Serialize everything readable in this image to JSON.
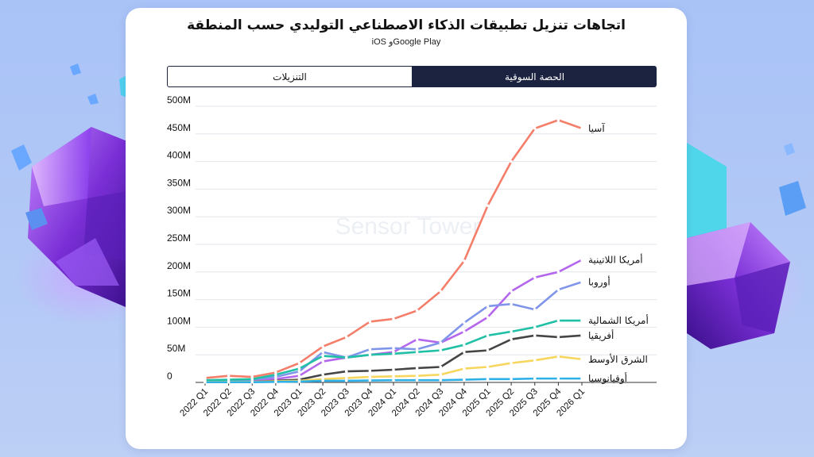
{
  "title": "اتجاهات تنزيل تطبيقات الذكاء الاصطناعي التوليدي حسب المنطقة",
  "subtitle": "iOS وGoogle Play",
  "tabs": {
    "left_label": "التنزيلات",
    "right_label": "الحصة السوقية"
  },
  "watermark": "Sensor Tower",
  "colors": {
    "tab_dark": "#1c2340",
    "background": "#b3c9f6"
  },
  "chart_data": {
    "type": "line",
    "xlabel": "",
    "ylabel": "",
    "ylim": [
      0,
      500000000
    ],
    "y_ticks": [
      "0",
      "50M",
      "100M",
      "150M",
      "200M",
      "250M",
      "300M",
      "350M",
      "400M",
      "450M",
      "500M"
    ],
    "grid": true,
    "legend": "right-end labels",
    "categories": [
      "2022 Q1",
      "2022 Q2",
      "2022 Q3",
      "2022 Q4",
      "2023 Q1",
      "2023 Q2",
      "2023 Q3",
      "2023 Q4",
      "2024 Q1",
      "2024 Q2",
      "2024 Q3",
      "2024 Q4",
      "2025 Q1",
      "2025 Q2",
      "2025 Q3",
      "2025 Q4",
      "2026 Q1"
    ],
    "series": [
      {
        "name": "آسيا",
        "color": "#f47e6a",
        "values": [
          8,
          12,
          10,
          18,
          35,
          65,
          82,
          110,
          115,
          130,
          165,
          220,
          320,
          400,
          460,
          475,
          460
        ]
      },
      {
        "name": "أمريكا اللاتينية",
        "color": "#b467ec",
        "values": [
          2,
          3,
          3,
          6,
          12,
          38,
          45,
          50,
          55,
          78,
          72,
          92,
          118,
          165,
          190,
          200,
          222
        ]
      },
      {
        "name": "أوروبا",
        "color": "#7f95ea",
        "values": [
          3,
          4,
          5,
          10,
          20,
          55,
          45,
          60,
          62,
          60,
          72,
          108,
          138,
          142,
          132,
          168,
          182
        ]
      },
      {
        "name": "أمريكا الشمالية",
        "color": "#1fc0a6",
        "values": [
          4,
          5,
          6,
          14,
          25,
          48,
          45,
          50,
          52,
          55,
          58,
          68,
          85,
          92,
          100,
          112,
          112
        ]
      },
      {
        "name": "أفريقيا",
        "color": "#454545",
        "values": [
          1,
          1,
          1,
          3,
          5,
          14,
          20,
          21,
          23,
          26,
          28,
          55,
          58,
          78,
          85,
          82,
          85
        ]
      },
      {
        "name": "الشرق الأوسط",
        "color": "#f7d65e",
        "values": [
          1,
          1,
          1,
          2,
          3,
          6,
          8,
          10,
          11,
          12,
          14,
          25,
          28,
          35,
          40,
          47,
          42
        ]
      },
      {
        "name": "أوقيانوسيا",
        "color": "#2db0e8",
        "values": [
          0.5,
          0.5,
          0.5,
          1,
          1.5,
          3,
          3,
          3.5,
          4,
          4,
          4,
          5,
          6,
          6,
          7,
          7,
          7
        ]
      }
    ]
  }
}
